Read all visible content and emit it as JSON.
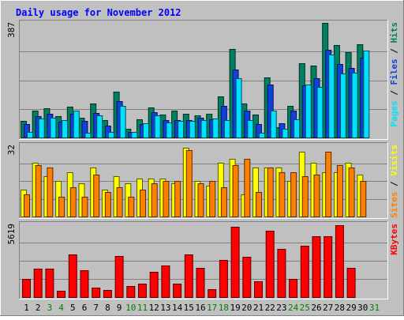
{
  "chart_data": {
    "type": "bar",
    "title": "Daily usage for November 2012",
    "categories": [
      "1",
      "2",
      "3",
      "4",
      "5",
      "6",
      "7",
      "8",
      "9",
      "10",
      "11",
      "12",
      "13",
      "14",
      "15",
      "16",
      "17",
      "18",
      "19",
      "20",
      "21",
      "22",
      "23",
      "24",
      "25",
      "26",
      "27",
      "28",
      "29",
      "30",
      "31"
    ],
    "weekend_days": [
      "3",
      "4",
      "10",
      "11",
      "17",
      "18",
      "24",
      "25",
      "31"
    ],
    "colors": {
      "background": "#c0c0c0",
      "title": "#0000ff",
      "weekday_label": "#000000",
      "weekend_label": "#008000",
      "hits": "#008060",
      "files": "#1040e0",
      "pages": "#00e0ff",
      "visits": "#ffff00",
      "sites": "#ff8000",
      "kbytes": "#ff0000"
    },
    "panels": [
      {
        "id": "top",
        "max_label": "387",
        "ylim": [
          0,
          387
        ],
        "series": [
          {
            "name": "Hits",
            "color_key": "hits",
            "values": [
              57,
              92,
              99,
              71,
              105,
              67,
              116,
              60,
              154,
              30,
              61,
              101,
              77,
              90,
              80,
              74,
              81,
              138,
              300,
              116,
              78,
              204,
              36,
              107,
              250,
              244,
              387,
              312,
              287,
              314,
              0
            ]
          },
          {
            "name": "Files",
            "color_key": "files",
            "values": [
              45,
              72,
              80,
              53,
              81,
              55,
              82,
              40,
              122,
              20,
              46,
              85,
              58,
              60,
              58,
              66,
              62,
              108,
              230,
              90,
              45,
              180,
              48,
              90,
              175,
              200,
              297,
              247,
              234,
              270,
              0
            ]
          },
          {
            "name": "Pages",
            "color_key": "pages",
            "values": [
              20,
              63,
              68,
              60,
              90,
              16,
              75,
              20,
              108,
              20,
              47,
              75,
              52,
              56,
              56,
              60,
              63,
              60,
              200,
              60,
              15,
              90,
              30,
              61,
              180,
              170,
              280,
              215,
              220,
              294,
              0
            ]
          }
        ],
        "legend": [
          {
            "text": "Pages",
            "color_key": "pages"
          },
          {
            "text": " / ",
            "color_key": "weekday_label"
          },
          {
            "text": "Files",
            "color_key": "files"
          },
          {
            "text": " / ",
            "color_key": "weekday_label"
          },
          {
            "text": "Hits",
            "color_key": "hits"
          }
        ]
      },
      {
        "id": "mid",
        "max_label": "32",
        "ylim": [
          0,
          32
        ],
        "series": [
          {
            "name": "Visits",
            "color_key": "visits",
            "values": [
              12,
              24,
              18,
              16,
              20,
              15,
              22,
              12,
              18,
              15,
              17,
              17,
              17,
              15,
              31,
              16,
              14,
              24,
              26,
              10,
              22,
              22,
              22,
              16,
              29,
              24,
              20,
              20,
              24,
              19,
              0
            ]
          },
          {
            "name": "Sites",
            "color_key": "sites",
            "values": [
              10,
              23,
              22,
              9,
              13,
              9,
              19,
              11,
              13,
              9,
              12,
              15,
              16,
              16,
              30,
              15,
              16,
              13,
              23,
              26,
              11,
              22,
              20,
              20,
              18,
              19,
              29,
              23,
              22,
              16,
              0
            ]
          }
        ],
        "legend": [
          {
            "text": "Sites",
            "color_key": "sites"
          },
          {
            "text": " / ",
            "color_key": "weekday_label"
          },
          {
            "text": "Visits",
            "color_key": "visits"
          }
        ]
      },
      {
        "id": "bot",
        "max_label": "5619",
        "ylim": [
          0,
          5619
        ],
        "series": [
          {
            "name": "KBytes",
            "color_key": "kbytes",
            "values": [
              1375,
              2199,
              2177,
              473,
              3318,
              2053,
              718,
              580,
              3176,
              831,
              1064,
              1924,
              2413,
              1020,
              3304,
              2282,
              616,
              2869,
              5414,
              3108,
              1238,
              5127,
              3700,
              1419,
              3964,
              4717,
              4717,
              5588,
              2284,
              0,
              0
            ]
          }
        ],
        "legend": [
          {
            "text": "KBytes",
            "color_key": "kbytes"
          }
        ]
      }
    ]
  }
}
